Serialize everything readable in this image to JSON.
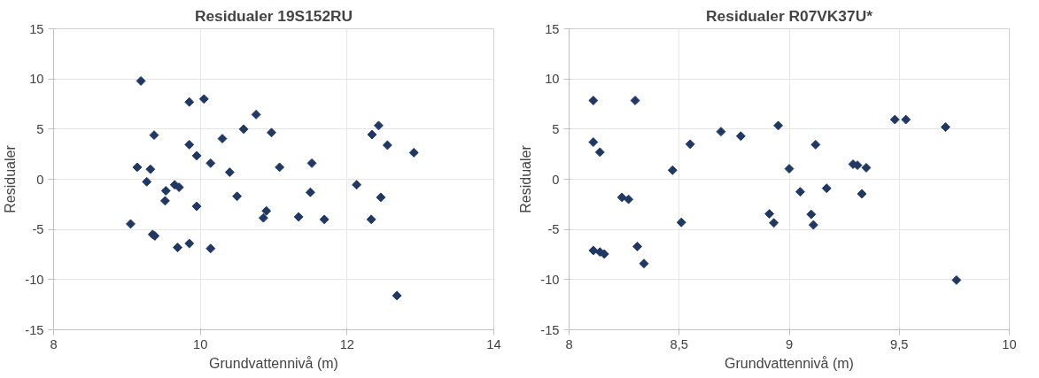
{
  "chart_data": [
    {
      "type": "scatter",
      "title": "Residualer 19S152RU",
      "xlabel": "Grundvattennivå (m)",
      "ylabel": "Residualer",
      "marker": "diamond",
      "grid": true,
      "xlim": [
        8,
        14
      ],
      "xticks": [
        8,
        10,
        12,
        14
      ],
      "ylim": [
        -15,
        15
      ],
      "yticks": [
        -15,
        -10,
        -5,
        0,
        5,
        10,
        15
      ],
      "series": [
        {
          "color": "#203864",
          "x": [
            9.19,
            9.85,
            10.05,
            10.76,
            10.59,
            10.97,
            9.37,
            10.3,
            9.85,
            9.95,
            10.14,
            9.14,
            9.32,
            10.4,
            11.08,
            11.52,
            12.43,
            12.34,
            12.55,
            12.91,
            9.27,
            9.65,
            9.71,
            9.53,
            9.52,
            9.95,
            10.5,
            11.5,
            12.13,
            12.46,
            10.9,
            10.86,
            11.34,
            11.69,
            12.33,
            9.05,
            9.35,
            9.38,
            9.69,
            9.85,
            10.14,
            12.68
          ],
          "values": [
            9.8,
            7.7,
            8.0,
            6.45,
            5.0,
            4.65,
            4.4,
            4.05,
            3.45,
            2.35,
            1.6,
            1.2,
            1.0,
            0.7,
            1.2,
            1.6,
            5.35,
            4.45,
            3.4,
            2.65,
            -0.25,
            -0.55,
            -0.8,
            -1.15,
            -2.15,
            -2.7,
            -1.7,
            -1.3,
            -0.55,
            -1.8,
            -3.15,
            -3.85,
            -3.75,
            -4.0,
            -4.0,
            -4.45,
            -5.5,
            -5.65,
            -6.8,
            -6.4,
            -6.9,
            -11.6
          ]
        }
      ]
    },
    {
      "type": "scatter",
      "title": "Residualer R07VK37U*",
      "xlabel": "Grundvattennivå (m)",
      "ylabel": "Residualer",
      "marker": "diamond",
      "grid": true,
      "xlim": [
        8,
        10
      ],
      "xticks": [
        8,
        {
          "value": 8.5,
          "label": "8,5"
        },
        9,
        {
          "value": 9.5,
          "label": "9,5"
        },
        10
      ],
      "ylim": [
        -15,
        15
      ],
      "yticks": [
        -15,
        -10,
        -5,
        0,
        5,
        10,
        15
      ],
      "series": [
        {
          "color": "#203864",
          "x": [
            8.11,
            8.3,
            8.11,
            8.14,
            8.47,
            8.55,
            8.69,
            8.78,
            8.95,
            9.12,
            9.0,
            9.29,
            9.31,
            9.35,
            9.48,
            9.53,
            9.71,
            9.76,
            8.24,
            8.27,
            8.51,
            8.31,
            8.34,
            8.11,
            8.14,
            8.16,
            8.91,
            8.93,
            9.05,
            9.1,
            9.11,
            9.17,
            9.33
          ],
          "values": [
            7.85,
            7.85,
            3.7,
            2.7,
            0.9,
            3.5,
            4.75,
            4.3,
            5.35,
            3.45,
            1.05,
            1.5,
            1.4,
            1.15,
            5.95,
            5.95,
            5.2,
            -10.05,
            -1.8,
            -2.0,
            -4.3,
            -6.7,
            -8.4,
            -7.1,
            -7.25,
            -7.45,
            -3.45,
            -4.35,
            -1.25,
            -3.5,
            -4.55,
            -0.9,
            -1.45
          ]
        }
      ]
    }
  ]
}
